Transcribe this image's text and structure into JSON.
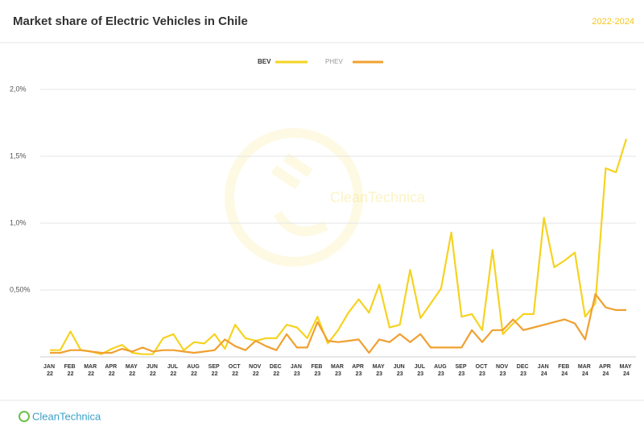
{
  "chart_data": {
    "type": "line",
    "title": "Market share of Electric Vehicles in Chile",
    "subtitle": "2022-2024",
    "watermark": "CleanTechnica",
    "footer": "CleanTechnica",
    "categories": [
      "JAN 22",
      null,
      "FEB 22",
      null,
      "MAR 22",
      null,
      "APR 22",
      null,
      "MAY 22",
      null,
      "JUN 22",
      null,
      "JUL 22",
      null,
      "AUG 22",
      null,
      "SEP 22",
      null,
      "OCT 22",
      null,
      "NOV 22",
      null,
      "DEC 22",
      null,
      "JAN 23",
      null,
      "FEB 23",
      null,
      "MAR 23",
      null,
      "APR 23",
      null,
      "MAY 23",
      null,
      "JUN 23",
      null,
      "JUL 23",
      null,
      "AUG 23",
      null,
      "SEP 23",
      null,
      "OCT 23",
      null,
      "NOV 23",
      null,
      "DEC 23",
      null,
      "JAN 24",
      null,
      "FEB 24",
      null,
      "MAR 24",
      null,
      "APR 24",
      null,
      "MAY 24"
    ],
    "series": [
      {
        "name": "BEV",
        "color": "#f5d320",
        "values": [
          0.05,
          0.05,
          0.19,
          0.05,
          0.04,
          0.02,
          0.06,
          0.09,
          0.03,
          0.02,
          0.02,
          0.14,
          0.17,
          0.05,
          0.11,
          0.1,
          0.17,
          0.06,
          0.24,
          0.14,
          0.12,
          0.14,
          0.14,
          0.24,
          0.22,
          0.14,
          0.3,
          0.1,
          0.2,
          0.33,
          0.43,
          0.33,
          0.54,
          0.22,
          0.24,
          0.65,
          0.29,
          0.4,
          0.51,
          0.93,
          0.3,
          0.32,
          0.2,
          0.8,
          0.17,
          0.25,
          0.32,
          0.32,
          1.04,
          0.67,
          0.72,
          0.78,
          0.3,
          0.4,
          1.41,
          1.38,
          1.63
        ]
      },
      {
        "name": "PHEV",
        "color": "#f0a030",
        "values": [
          0.03,
          0.03,
          0.05,
          0.05,
          0.04,
          0.03,
          0.03,
          0.06,
          0.04,
          0.07,
          0.04,
          0.05,
          0.05,
          0.04,
          0.03,
          0.04,
          0.05,
          0.13,
          0.08,
          0.05,
          0.12,
          0.08,
          0.05,
          0.17,
          0.07,
          0.07,
          0.26,
          0.12,
          0.11,
          0.12,
          0.13,
          0.03,
          0.13,
          0.11,
          0.17,
          0.11,
          0.17,
          0.07,
          0.07,
          0.07,
          0.07,
          0.2,
          0.11,
          0.2,
          0.2,
          0.28,
          0.2,
          0.22,
          0.24,
          0.26,
          0.28,
          0.25,
          0.13,
          0.47,
          0.37,
          0.35,
          0.35
        ]
      }
    ],
    "ylim": [
      0,
      2
    ],
    "yticks": [
      {
        "value": 0.5,
        "label": "0,50%"
      },
      {
        "value": 1,
        "label": "1,0%"
      },
      {
        "value": 1.5,
        "label": "1,5%"
      },
      {
        "value": 2,
        "label": "2,0%"
      }
    ],
    "grid": true
  }
}
